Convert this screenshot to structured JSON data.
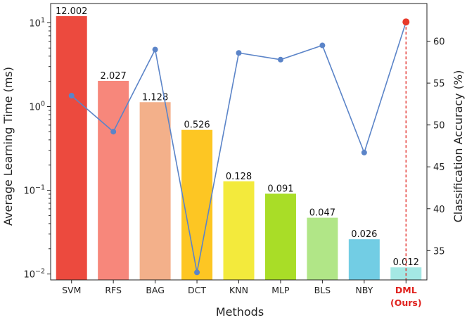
{
  "chart_data": {
    "type": "bar+line",
    "xlabel": "Methods",
    "ylabel_left": "Average Learning Time (ms)",
    "ylabel_right": "Classification Accuracy (%)",
    "yscale_left": "log",
    "ylim_left": [
      0.0085,
      17
    ],
    "yticks_left": [
      {
        "value": 0.01,
        "base": "10",
        "exp": "−2"
      },
      {
        "value": 0.1,
        "base": "10",
        "exp": "−1"
      },
      {
        "value": 1,
        "base": "10",
        "exp": "0"
      },
      {
        "value": 10,
        "base": "10",
        "exp": "1"
      }
    ],
    "ylim_right": [
      31.5,
      64.5
    ],
    "yticks_right": [
      35,
      40,
      45,
      50,
      55,
      60
    ],
    "categories": [
      "SVM",
      "RFS",
      "BAG",
      "DCT",
      "KNN",
      "MLP",
      "BLS",
      "NBY",
      "DML"
    ],
    "category_sublabels": [
      "",
      "",
      "",
      "",
      "",
      "",
      "",
      "",
      "(Ours)"
    ],
    "highlight_index": 8,
    "highlight_color": "#e0211d",
    "bars": {
      "values": [
        12.002,
        2.027,
        1.128,
        0.526,
        0.128,
        0.091,
        0.047,
        0.026,
        0.012
      ],
      "labels": [
        "12.002",
        "2.027",
        "1.128",
        "0.526",
        "0.128",
        "0.091",
        "0.047",
        "0.026",
        "0.012"
      ],
      "colors": [
        "#ec4a3e",
        "#f7877b",
        "#f3b08a",
        "#fdc623",
        "#f3ea3c",
        "#a9dd27",
        "#b1e687",
        "#72cde4",
        "#a4e8e4"
      ]
    },
    "accuracy": {
      "values": [
        53.5,
        49.2,
        59.0,
        32.4,
        58.6,
        57.8,
        59.5,
        46.7,
        62.3
      ],
      "line_color": "#5b84c8",
      "highlight_marker_color": "#e8392a"
    }
  }
}
